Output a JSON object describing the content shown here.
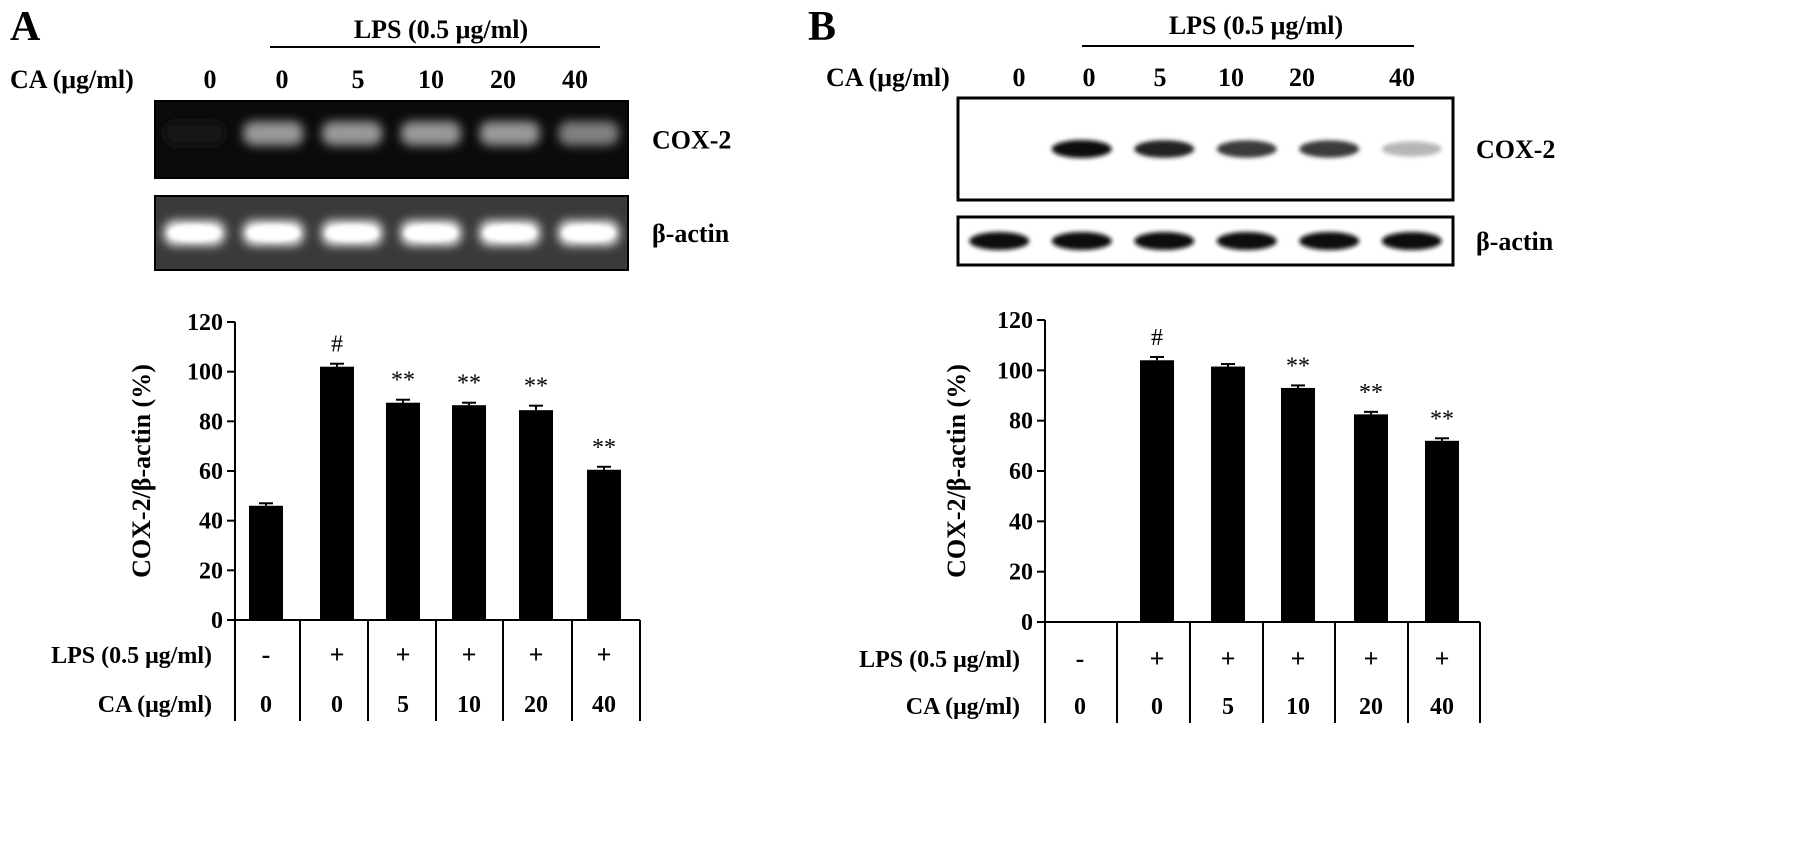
{
  "panels": [
    {
      "letter": "A",
      "header": {
        "lps_label": "LPS (0.5 μg/ml)",
        "ca_label": "CA (μg/ml)",
        "ca_values": [
          "0",
          "0",
          "5",
          "10",
          "20",
          "40"
        ]
      },
      "blots": [
        {
          "label": "COX-2",
          "style": "gel",
          "intensities": [
            0.08,
            0.6,
            0.6,
            0.6,
            0.6,
            0.5
          ]
        },
        {
          "label": "β-actin",
          "style": "gel",
          "intensities": [
            1,
            1,
            1,
            1,
            1,
            1
          ]
        }
      ]
    },
    {
      "letter": "B",
      "header": {
        "lps_label": "LPS (0.5 μg/ml)",
        "ca_label": "CA (μg/ml)",
        "ca_values": [
          "0",
          "0",
          "5",
          "10",
          "20",
          "40"
        ]
      },
      "blots": [
        {
          "label": "COX-2",
          "style": "western",
          "intensities": [
            0,
            1,
            0.9,
            0.8,
            0.8,
            0.3
          ]
        },
        {
          "label": "β-actin",
          "style": "western",
          "intensities": [
            1,
            1,
            1,
            1,
            1,
            1
          ]
        }
      ]
    }
  ],
  "chart_data": [
    {
      "panel": "A",
      "type": "bar",
      "ylabel": "COX-2/β-actin (%)",
      "ylim": [
        0,
        120
      ],
      "yticks": [
        0,
        20,
        40,
        60,
        80,
        100,
        120
      ],
      "values": [
        46,
        102,
        87.5,
        86.5,
        84.5,
        60.5
      ],
      "errors": [
        1,
        1.2,
        1.2,
        1,
        1.8,
        1.2
      ],
      "annotations": [
        "",
        "#",
        "**",
        "**",
        "**",
        "**"
      ],
      "table": {
        "row_labels": [
          "LPS (0.5 μg/ml)",
          "CA (μg/ml)"
        ],
        "lps": [
          "-",
          "+",
          "+",
          "+",
          "+",
          "+"
        ],
        "ca": [
          "0",
          "0",
          "5",
          "10",
          "20",
          "40"
        ]
      },
      "bar_color": "#000000"
    },
    {
      "panel": "B",
      "type": "bar",
      "ylabel": "COX-2/β-actin (%)",
      "ylim": [
        0,
        120
      ],
      "yticks": [
        0,
        20,
        40,
        60,
        80,
        100,
        120
      ],
      "values": [
        0,
        104,
        101.5,
        93,
        82.5,
        72
      ],
      "errors": [
        0,
        1.3,
        1,
        1,
        1,
        1
      ],
      "annotations": [
        "",
        "#",
        "",
        "**",
        "**",
        "**"
      ],
      "table": {
        "row_labels": [
          "LPS (0.5 μg/ml)",
          "CA (μg/ml)"
        ],
        "lps": [
          "-",
          "+",
          "+",
          "+",
          "+",
          "+"
        ],
        "ca": [
          "0",
          "0",
          "5",
          "10",
          "20",
          "40"
        ]
      },
      "bar_color": "#000000"
    }
  ]
}
